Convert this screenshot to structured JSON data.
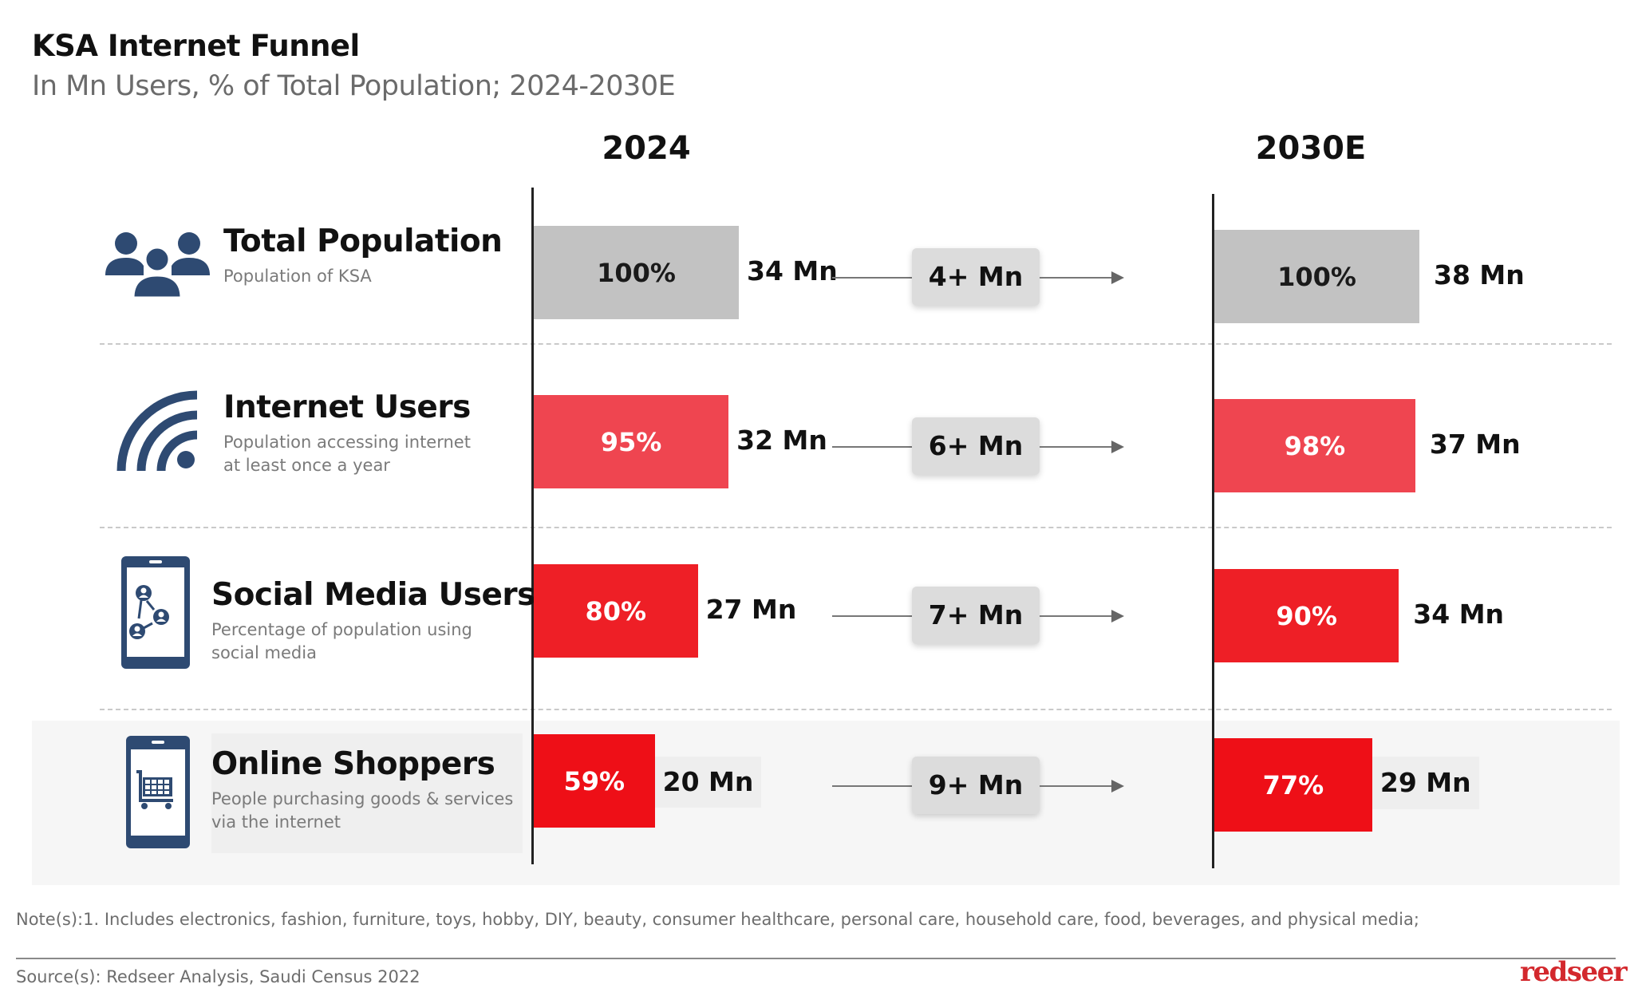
{
  "header": {
    "title": "KSA Internet Funnel",
    "subtitle": "In Mn Users, % of Total Population; 2024-2030E"
  },
  "columns": {
    "left_year": "2024",
    "right_year": "2030E"
  },
  "rows": [
    {
      "icon": "people-group-icon",
      "title": "Total Population",
      "desc_lines": [
        "Population of KSA"
      ],
      "y2024_pct_label": "100%",
      "y2024_mn_label": "34 Mn",
      "delta_label": "4+ Mn",
      "y2030_pct_label": "100%",
      "y2030_mn_label": "38 Mn",
      "bar_color": "#c2c2c2"
    },
    {
      "icon": "wifi-signal-icon",
      "title": "Internet Users",
      "desc_lines": [
        "Population  accessing  internet",
        "at least once a year"
      ],
      "y2024_pct_label": "95%",
      "y2024_mn_label": "32 Mn",
      "delta_label": "6+ Mn",
      "y2030_pct_label": "98%",
      "y2030_mn_label": "37 Mn",
      "bar_color": "#ef4550"
    },
    {
      "icon": "smartphone-social-network-icon",
      "title": "Social Media Users",
      "desc_lines": [
        "Percentage of population using",
        "social media"
      ],
      "y2024_pct_label": "80%",
      "y2024_mn_label": "27 Mn",
      "delta_label": "7+ Mn",
      "y2030_pct_label": "90%",
      "y2030_mn_label": "34 Mn",
      "bar_color": "#ee1f26"
    },
    {
      "icon": "smartphone-shopping-cart-icon",
      "title": "Online Shoppers",
      "desc_lines": [
        "People purchasing goods & services",
        "via the internet"
      ],
      "y2024_pct_label": "59%",
      "y2024_mn_label": "20 Mn",
      "delta_label": "9+ Mn",
      "y2030_pct_label": "77%",
      "y2030_mn_label": "29 Mn",
      "bar_color": "#ee0f17"
    }
  ],
  "footer": {
    "note": "Note(s):1. Includes electronics, fashion, furniture, toys, hobby, DIY, beauty, consumer healthcare, personal care, household care, food, beverages, and physical media;",
    "source": "Source(s): Redseer Analysis, Saudi Census 2022",
    "logo": "redseer"
  },
  "colors": {
    "icon_navy": "#2e4a72",
    "bar_gray": "#c2c2c2",
    "accent_red": "#ee1f26",
    "logo_red": "#d3282d"
  },
  "chart_data": {
    "type": "bar",
    "title": "KSA Internet Funnel",
    "subtitle": "In Mn Users, % of Total Population; 2024-2030E",
    "categories": [
      "Total Population",
      "Internet Users",
      "Social Media Users",
      "Online Shoppers"
    ],
    "series": [
      {
        "name": "2024",
        "values_pct": [
          100,
          95,
          80,
          59
        ],
        "values_mn": [
          34,
          32,
          27,
          20
        ]
      },
      {
        "name": "2030E",
        "values_pct": [
          100,
          98,
          90,
          77
        ],
        "values_mn": [
          38,
          37,
          34,
          29
        ]
      }
    ],
    "increment_2024_2030_mn": [
      "4+",
      "6+",
      "7+",
      "9+"
    ],
    "orientation": "horizontal",
    "xlabel": "% of Total Population",
    "ylabel": "",
    "xlim": [
      0,
      100
    ],
    "grid": false,
    "legend": "none"
  }
}
